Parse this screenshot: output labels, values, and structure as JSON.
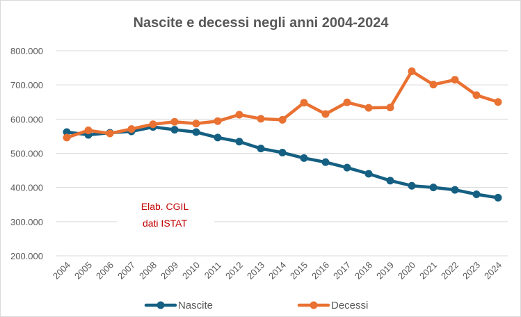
{
  "chart_data": {
    "type": "line",
    "title": "Nascite e decessi negli anni 2004-2024",
    "xlabel": "",
    "ylabel": "",
    "categories": [
      "2004",
      "2005",
      "2006",
      "2007",
      "2008",
      "2009",
      "2010",
      "2011",
      "2012",
      "2013",
      "2014",
      "2015",
      "2016",
      "2017",
      "2018",
      "2019",
      "2020",
      "2021",
      "2022",
      "2023",
      "2024"
    ],
    "ylim": [
      200000,
      800000
    ],
    "ytick_values": [
      200000,
      300000,
      400000,
      500000,
      600000,
      700000,
      800000
    ],
    "ytick_labels": [
      "200.000",
      "300.000",
      "400.000",
      "500.000",
      "600.000",
      "700.000",
      "800.000"
    ],
    "grid": true,
    "legend_position": "bottom",
    "series": [
      {
        "name": "Nascite",
        "color": "#156082",
        "values": [
          562000,
          554000,
          560000,
          564000,
          577000,
          569000,
          562000,
          546000,
          534000,
          514000,
          502000,
          486000,
          474000,
          458000,
          440000,
          420000,
          405000,
          400000,
          393000,
          380000,
          370000
        ]
      },
      {
        "name": "Decessi",
        "color": "#e97132",
        "values": [
          546000,
          567000,
          558000,
          571000,
          585000,
          592000,
          587000,
          594000,
          613000,
          601000,
          598000,
          648000,
          615000,
          649000,
          633000,
          634000,
          740000,
          701000,
          715000,
          670000,
          650000
        ]
      }
    ],
    "annotation": {
      "lines": [
        "Elab. CGIL",
        "dati ISTAT"
      ]
    }
  }
}
